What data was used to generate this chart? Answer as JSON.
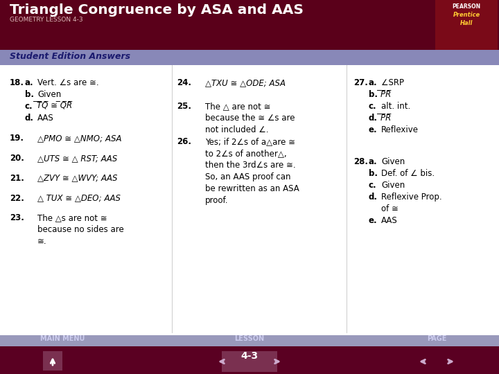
{
  "title": "Triangle Congruence by ASA and AAS",
  "subtitle": "GEOMETRY LESSON 4-3",
  "section_label": "Student Edition Answers",
  "header_bg": "#5a001a",
  "section_bg": "#8888b8",
  "body_bg": "#ffffff",
  "footer_top_bg": "#9999bb",
  "footer_bot_bg": "#5a0022",
  "title_color": "#ffffff",
  "section_color": "#1a1a6e",
  "lesson_num": "4-3"
}
